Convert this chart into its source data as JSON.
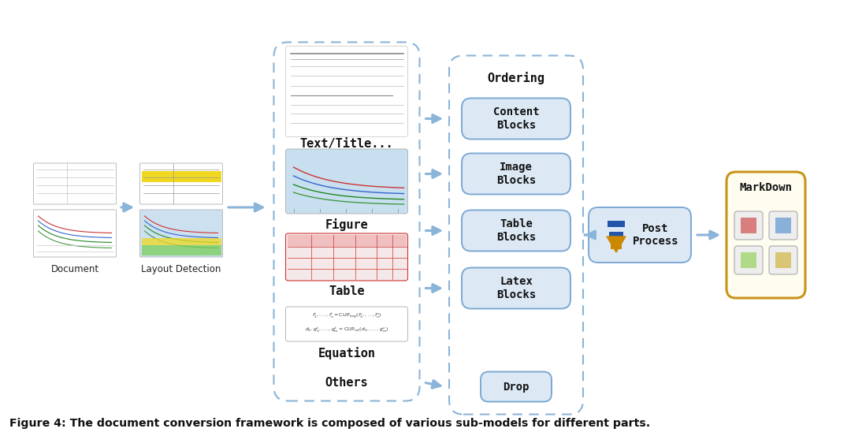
{
  "title": "Figure 4: The document conversion framework is composed of various sub-models for different parts.",
  "bg_color": "#ffffff",
  "arrow_color": "#8ab4d8",
  "dashed_border_color": "#8ab4d8",
  "block_fill": "#dce9f5",
  "block_border": "#7da8d4",
  "block_text_color": "#111111",
  "ordering_text": "Ordering",
  "right_blocks": [
    "Content\nBlocks",
    "Image\nBlocks",
    "Table\nBlocks",
    "Latex\nBlocks"
  ],
  "drop_label": "Drop",
  "post_process_label": "Post\nProcess",
  "markdown_label": "MarkDown",
  "center_labels": [
    "Text/Title...",
    "Figure",
    "Table",
    "Equation",
    "Others"
  ]
}
